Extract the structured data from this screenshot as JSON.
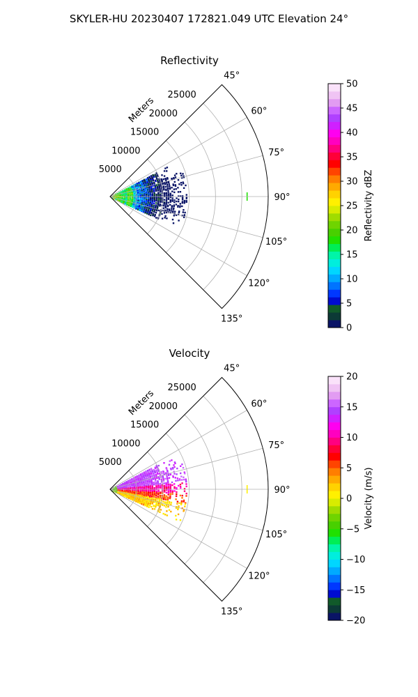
{
  "figure": {
    "suptitle": "SKYLER-HU  20230407  172821.049 UTC Elevation 24°"
  },
  "chart_data": [
    {
      "type": "heatmap",
      "projection": "polar-sector",
      "title": "Reflectivity",
      "range_label": "Meters",
      "range_ticks": [
        5000,
        10000,
        15000,
        20000,
        25000
      ],
      "range_tick_labels": [
        "5000",
        "10000",
        "15000",
        "20000",
        "25000"
      ],
      "rmax": 30000,
      "azimuth_range_deg": [
        45,
        135
      ],
      "azimuth_ticks": [
        45,
        60,
        75,
        90,
        105,
        120,
        135
      ],
      "azimuth_tick_labels": [
        "45°",
        "60°",
        "75°",
        "90°",
        "105°",
        "120°",
        "135°"
      ],
      "grid": true,
      "colorbar": {
        "label": "Reflectivity dBZ",
        "vmin": 0,
        "vmax": 50,
        "ticks": [
          0,
          5,
          10,
          15,
          20,
          25,
          30,
          35,
          40,
          45,
          50
        ],
        "tick_labels": [
          "0",
          "5",
          "10",
          "15",
          "20",
          "25",
          "30",
          "35",
          "40",
          "45",
          "50"
        ],
        "colors": [
          "#0a1466",
          "#0c3a36",
          "#115a2a",
          "#000cd0",
          "#0038ff",
          "#0074ff",
          "#00aaff",
          "#00d6ff",
          "#00eedd",
          "#00f5a8",
          "#00ee55",
          "#20e000",
          "#48d000",
          "#6fd400",
          "#a0dc00",
          "#d8ec00",
          "#fff000",
          "#ffd200",
          "#ffaa00",
          "#ff7e00",
          "#ff4400",
          "#ff0000",
          "#ff0038",
          "#ff0080",
          "#ff00c0",
          "#ff00f0",
          "#d020ff",
          "#b040ff",
          "#cc66ff",
          "#e29cf2",
          "#f0c4f4",
          "#fae2fa"
        ]
      },
      "echo": {
        "range_extent_m": [
          0,
          14500
        ],
        "azimuth_extent_deg": [
          62,
          115
        ],
        "value_summary": "near-range echoes mostly 12–25 dBZ, cores up to ~27 dBZ, weak 5–15 dBZ fringe",
        "isolated_returns": [
          {
            "azimuth_deg": 90,
            "range_m": 26000,
            "value": 18
          }
        ]
      }
    },
    {
      "type": "heatmap",
      "projection": "polar-sector",
      "title": "Velocity",
      "range_label": "Meters",
      "range_ticks": [
        5000,
        10000,
        15000,
        20000,
        25000
      ],
      "range_tick_labels": [
        "5000",
        "10000",
        "15000",
        "20000",
        "25000"
      ],
      "rmax": 30000,
      "azimuth_range_deg": [
        45,
        135
      ],
      "azimuth_ticks": [
        45,
        60,
        75,
        90,
        105,
        120,
        135
      ],
      "azimuth_tick_labels": [
        "45°",
        "60°",
        "75°",
        "90°",
        "105°",
        "120°",
        "135°"
      ],
      "grid": true,
      "colorbar": {
        "label": "Velocity (m/s)",
        "vmin": -20,
        "vmax": 20,
        "ticks": [
          -20,
          -15,
          -10,
          -5,
          0,
          5,
          10,
          15,
          20
        ],
        "tick_labels": [
          "−20",
          "−15",
          "−10",
          "−5",
          "0",
          "5",
          "10",
          "15",
          "20"
        ],
        "colors": [
          "#0a1466",
          "#0c3a36",
          "#115a2a",
          "#000cd0",
          "#0038ff",
          "#0074ff",
          "#00aaff",
          "#00d6ff",
          "#00eedd",
          "#00f5a8",
          "#00ee55",
          "#20e000",
          "#48d000",
          "#6fd400",
          "#a0dc00",
          "#d8ec00",
          "#fff000",
          "#ffd200",
          "#ffaa00",
          "#ff7e00",
          "#ff4400",
          "#ff0000",
          "#ff0038",
          "#ff0080",
          "#ff00c0",
          "#ff00f0",
          "#d020ff",
          "#b040ff",
          "#cc66ff",
          "#e29cf2",
          "#f0c4f4",
          "#fae2fa"
        ]
      },
      "echo": {
        "range_extent_m": [
          0,
          14500
        ],
        "azimuth_extent_deg": [
          62,
          115
        ],
        "value_summary": "outbound ~13–16 m/s north of 90°, ~8–11 m/s near 90°, ~0–4 m/s south of 95°, −5 to −8 m/s at nearest range",
        "isolated_returns": [
          {
            "azimuth_deg": 90,
            "range_m": 26000,
            "value": 1
          }
        ]
      }
    }
  ]
}
